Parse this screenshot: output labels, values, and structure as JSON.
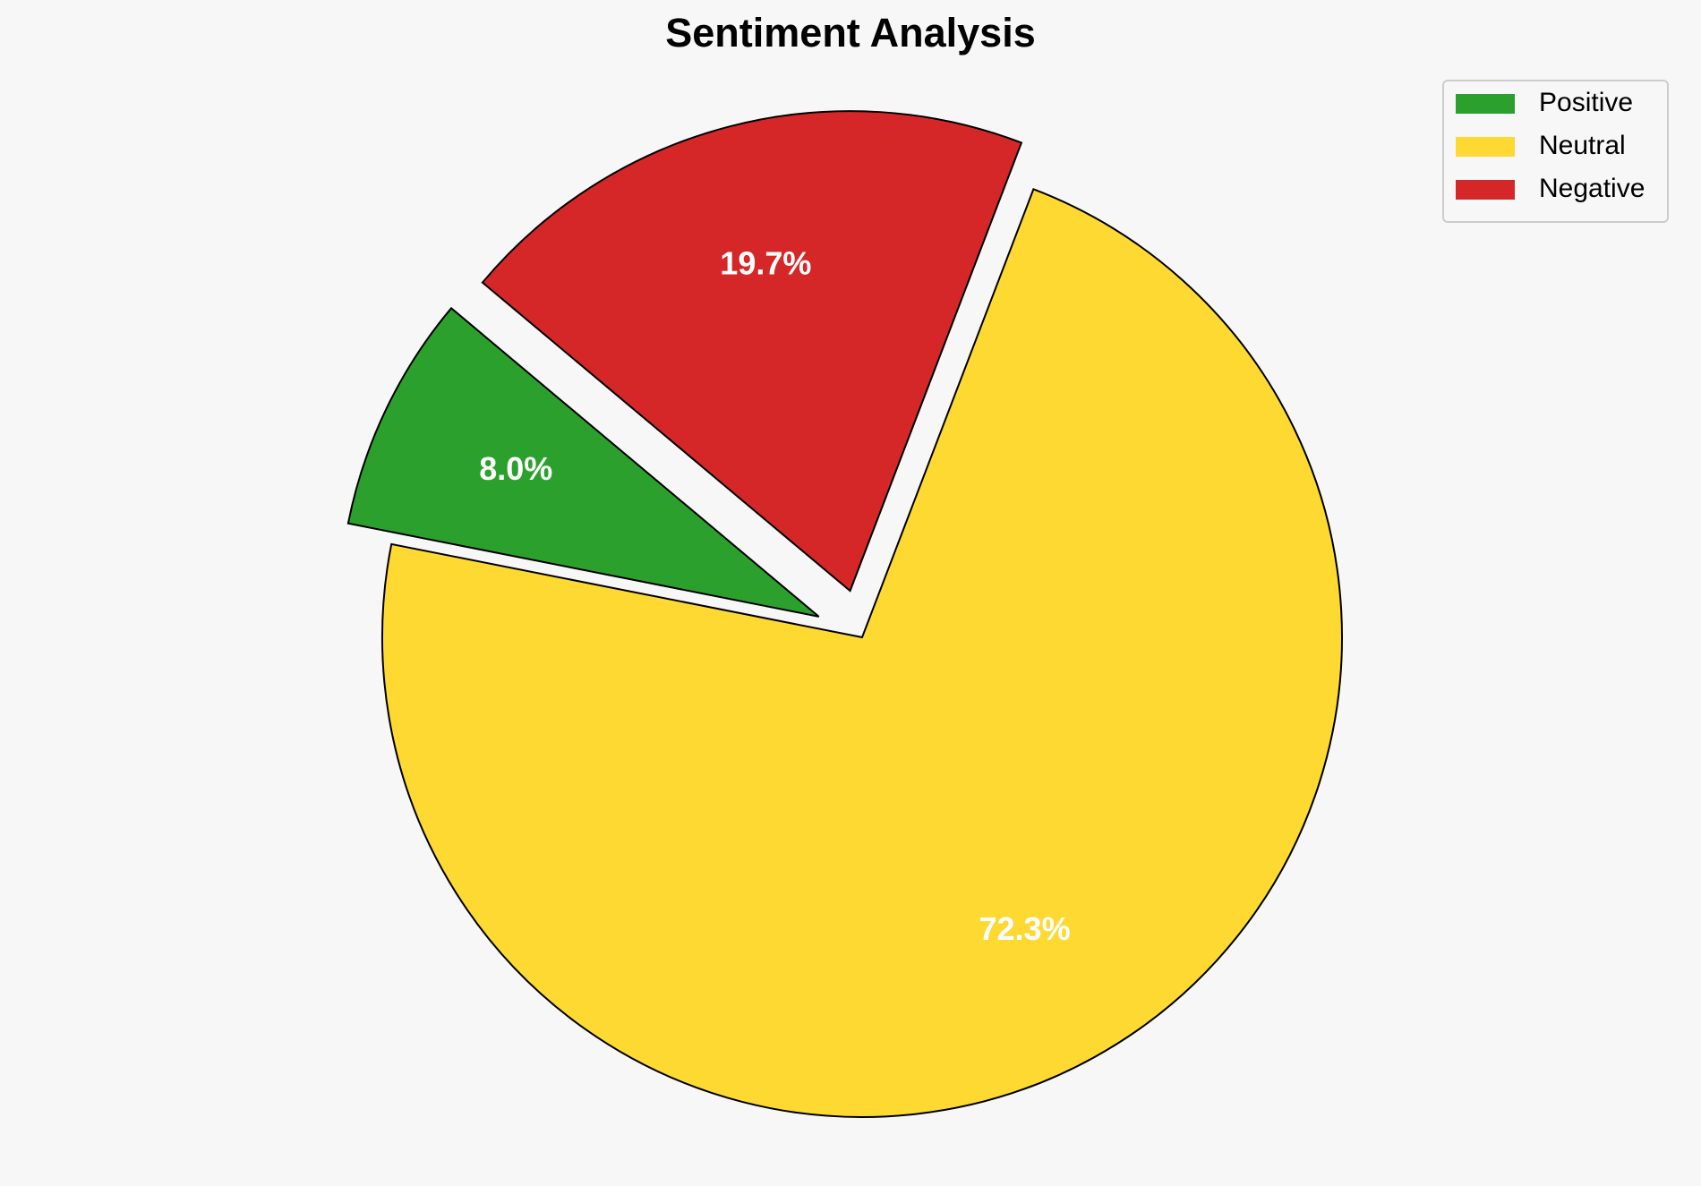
{
  "chart_data": {
    "type": "pie",
    "title": "Sentiment Analysis",
    "categories": [
      "Positive",
      "Neutral",
      "Negative"
    ],
    "values": [
      8.0,
      72.3,
      19.7
    ],
    "value_labels": [
      "8.0%",
      "72.3%",
      "19.7%"
    ],
    "colors": [
      "#2ca02c",
      "#fdd932",
      "#d62728"
    ],
    "explode": [
      0.1,
      0,
      0.1
    ],
    "start_angle": 140,
    "legend": "upper right"
  }
}
